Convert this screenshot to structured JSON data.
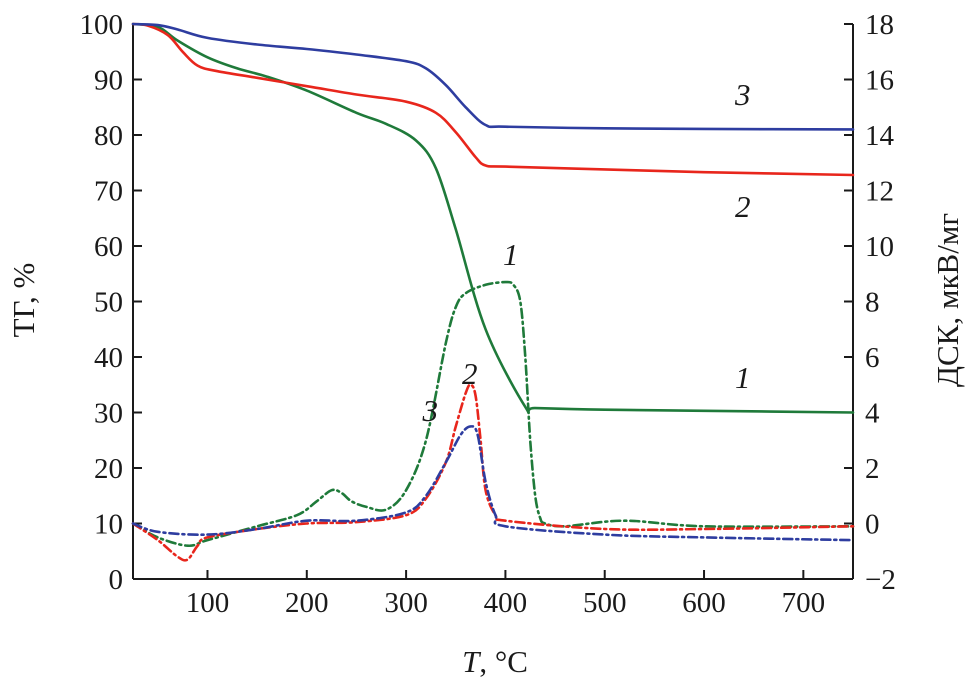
{
  "chart_data": {
    "type": "line",
    "xlabel_italic": "T",
    "xlabel_unit": ", °C",
    "ylabel_left": "ТГ, %",
    "ylabel_right": "ДСК, мкВ/мг",
    "xlim": [
      25,
      750
    ],
    "ylim_left": [
      0,
      100
    ],
    "ylim_right": [
      -2,
      18
    ],
    "x_ticks": [
      100,
      200,
      300,
      400,
      500,
      600,
      700
    ],
    "y_left_ticks": [
      0,
      10,
      20,
      30,
      40,
      50,
      60,
      70,
      80,
      90,
      100
    ],
    "y_right_ticks": [
      -2,
      0,
      2,
      4,
      6,
      8,
      10,
      12,
      14,
      16,
      18
    ],
    "y_right_tick_labels": [
      "−2",
      "0",
      "2",
      "4",
      "6",
      "8",
      "10",
      "12",
      "14",
      "16",
      "18"
    ],
    "colors": {
      "1": "#1f7a3a",
      "2": "#e8261c",
      "3": "#2e3da0"
    },
    "series": [
      {
        "name": "1",
        "kind": "TG",
        "axis": "left",
        "style": "solid",
        "color": "#1f7a3a",
        "x": [
          25,
          50,
          70,
          100,
          130,
          160,
          200,
          250,
          280,
          310,
          330,
          350,
          380,
          420,
          430,
          500,
          600,
          750
        ],
        "y": [
          100,
          99.5,
          97,
          94,
          92,
          90.5,
          88,
          84,
          82,
          79,
          74,
          63,
          45,
          31,
          30.8,
          30.5,
          30.3,
          30
        ]
      },
      {
        "name": "2",
        "kind": "TG",
        "axis": "left",
        "style": "solid",
        "color": "#e8261c",
        "x": [
          25,
          40,
          60,
          75,
          90,
          110,
          150,
          200,
          250,
          300,
          330,
          350,
          370,
          380,
          400,
          500,
          600,
          750
        ],
        "y": [
          100,
          99.7,
          98,
          95,
          92.5,
          91.5,
          90.3,
          88.8,
          87.3,
          86,
          84,
          80.5,
          76,
          74.5,
          74.3,
          73.8,
          73.3,
          72.8
        ]
      },
      {
        "name": "3",
        "kind": "TG",
        "axis": "left",
        "style": "solid",
        "color": "#2e3da0",
        "x": [
          25,
          50,
          70,
          100,
          150,
          200,
          250,
          300,
          320,
          340,
          360,
          380,
          400,
          500,
          600,
          750
        ],
        "y": [
          100,
          99.8,
          99,
          97.5,
          96.3,
          95.5,
          94.5,
          93.3,
          92,
          89,
          85,
          81.8,
          81.5,
          81.2,
          81.1,
          81
        ]
      },
      {
        "name": "1",
        "kind": "DSC",
        "axis": "right",
        "style": "dashdot",
        "color": "#1f7a3a",
        "x": [
          25,
          50,
          80,
          100,
          150,
          190,
          210,
          225,
          235,
          245,
          260,
          280,
          300,
          320,
          340,
          350,
          360,
          380,
          400,
          408,
          415,
          420,
          425,
          430,
          435,
          440,
          460,
          520,
          600,
          750
        ],
        "y": [
          0,
          -0.5,
          -0.8,
          -0.6,
          -0.1,
          0.3,
          0.8,
          1.2,
          1.1,
          0.8,
          0.6,
          0.5,
          1.2,
          3,
          6.5,
          7.8,
          8.3,
          8.6,
          8.7,
          8.6,
          8,
          6,
          3,
          1,
          0.2,
          0,
          -0.1,
          0.1,
          -0.1,
          -0.1
        ]
      },
      {
        "name": "2",
        "kind": "DSC",
        "axis": "right",
        "style": "dashdot",
        "color": "#e8261c",
        "x": [
          25,
          50,
          70,
          80,
          90,
          100,
          150,
          200,
          250,
          300,
          320,
          340,
          350,
          360,
          365,
          370,
          375,
          380,
          390,
          400,
          500,
          600,
          750
        ],
        "y": [
          0,
          -0.6,
          -1.2,
          -1.3,
          -0.8,
          -0.5,
          -0.2,
          0,
          0.05,
          0.3,
          0.9,
          2.2,
          3.5,
          4.7,
          5,
          4.6,
          3,
          1.2,
          0.3,
          0.1,
          -0.2,
          -0.2,
          -0.1
        ]
      },
      {
        "name": "3",
        "kind": "DSC",
        "axis": "right",
        "style": "dashdot",
        "color": "#2e3da0",
        "x": [
          25,
          50,
          100,
          150,
          200,
          250,
          300,
          320,
          340,
          355,
          365,
          372,
          380,
          390,
          400,
          500,
          600,
          750
        ],
        "y": [
          0,
          -0.3,
          -0.4,
          -0.2,
          0.1,
          0.1,
          0.4,
          1,
          2.2,
          3.2,
          3.5,
          3.2,
          1.5,
          0.3,
          -0.1,
          -0.4,
          -0.5,
          -0.6
        ]
      }
    ],
    "annotations": [
      {
        "text": "1",
        "target": "TG curve 1 (plateau ~30%)"
      },
      {
        "text": "2",
        "target": "TG curve 2 (plateau ~73%)"
      },
      {
        "text": "3",
        "target": "TG curve 3 (plateau ~81%)"
      },
      {
        "text": "1",
        "target": "DSC peak 1"
      },
      {
        "text": "2",
        "target": "DSC peak 2"
      },
      {
        "text": "3",
        "target": "DSC peak 3"
      }
    ]
  }
}
